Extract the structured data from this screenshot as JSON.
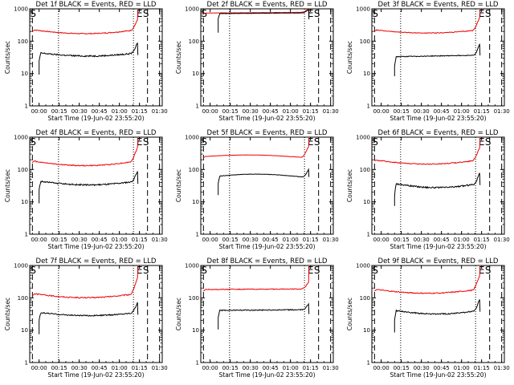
{
  "figure": {
    "axis_color": "#000000",
    "events_color": "#000000",
    "lld_color": "#ee0000"
  },
  "chart_data": [
    {
      "type": "line",
      "detector": "1f",
      "title": "Det 1f BLACK = Events, RED = LLD",
      "xlabel": "Start Time (19-Jun-02 23:55:20)",
      "ylabel": "Counts/sec",
      "yscale": "log",
      "ylim": [
        1,
        1000
      ],
      "xlim_min": [
        -2,
        97
      ],
      "xticks_min": [
        5,
        20,
        35,
        50,
        65,
        80,
        95
      ],
      "xtick_labels": [
        "00:00",
        "00:15",
        "00:30",
        "00:45",
        "01:00",
        "01:15",
        "01:30"
      ],
      "ytick_labels": [
        "1",
        "10",
        "100",
        "1000"
      ],
      "markers": {
        "S_min": 0,
        "E_min": 79.5,
        "dashed_min": [
          0,
          86,
          95
        ],
        "dotted_min": [
          19.5,
          75.5
        ]
      },
      "series": [
        {
          "name": "LLD",
          "color": "#ee0000",
          "start_min": 0,
          "end_min": 78.5,
          "profile": "u",
          "level": 185,
          "curvature": 0.15,
          "edge_drop": 0.1,
          "noise": 0.03,
          "end_rise": 2.0
        },
        {
          "name": "Events",
          "color": "#000000",
          "start_min": 5,
          "end_min": 78.5,
          "profile": "u",
          "level": 37,
          "curvature": 0.12,
          "edge_drop": 0.45,
          "noise": 0.05,
          "end_rise": 2.0
        }
      ]
    },
    {
      "type": "line",
      "detector": "2f",
      "title": "Det 2f BLACK = Events, RED = LLD",
      "xlabel": "Start Time (19-Jun-02 23:55:20)",
      "ylabel": "Counts/sec",
      "yscale": "log",
      "ylim": [
        1,
        1000
      ],
      "xlim_min": [
        -2,
        97
      ],
      "xticks_min": [
        5,
        20,
        35,
        50,
        65,
        80,
        95
      ],
      "xtick_labels": [
        "00:00",
        "00:15",
        "00:30",
        "00:45",
        "01:00",
        "01:15",
        "01:30"
      ],
      "ytick_labels": [
        "1",
        "10",
        "100",
        "1000"
      ],
      "markers": {
        "S_min": 0,
        "E_min": 79.5,
        "dashed_min": [
          0,
          86,
          95
        ],
        "dotted_min": [
          19.5,
          75.5
        ]
      },
      "series": [
        {
          "name": "LLD",
          "color": "#ee0000",
          "start_min": 0,
          "end_min": 78.5,
          "profile": "flat",
          "level": 760,
          "curvature": 0.05,
          "edge_drop": 0.05,
          "noise": 0.012,
          "end_rise": 1.3
        },
        {
          "name": "Events",
          "color": "#000000",
          "start_min": 11,
          "end_min": 78.5,
          "profile": "flat",
          "level": 730,
          "curvature": 0.05,
          "edge_drop": 0.3,
          "noise": 0.01,
          "end_rise": 1.3
        }
      ]
    },
    {
      "type": "line",
      "detector": "3f",
      "title": "Det 3f BLACK = Events, RED = LLD",
      "xlabel": "Start Time (19-Jun-02 23:55:20)",
      "ylabel": "Counts/sec",
      "yscale": "log",
      "ylim": [
        1,
        1000
      ],
      "xlim_min": [
        -2,
        97
      ],
      "xticks_min": [
        5,
        20,
        35,
        50,
        65,
        80,
        95
      ],
      "xtick_labels": [
        "00:00",
        "00:15",
        "00:30",
        "00:45",
        "01:00",
        "01:15",
        "01:30"
      ],
      "ytick_labels": [
        "1",
        "10",
        "100",
        "1000"
      ],
      "markers": {
        "S_min": 0,
        "E_min": 79.5,
        "dashed_min": [
          0,
          86,
          95
        ],
        "dotted_min": [
          19.5,
          75.5
        ]
      },
      "series": [
        {
          "name": "LLD",
          "color": "#ee0000",
          "start_min": 0,
          "end_min": 78.5,
          "profile": "u",
          "level": 190,
          "curvature": 0.12,
          "edge_drop": 0.1,
          "noise": 0.025,
          "end_rise": 2.4
        },
        {
          "name": "Events",
          "color": "#000000",
          "start_min": 15,
          "end_min": 78.5,
          "profile": "rise",
          "level": 33,
          "curvature": 0.08,
          "edge_drop": 0.5,
          "noise": 0.025,
          "end_rise": 2.2
        }
      ]
    },
    {
      "type": "line",
      "detector": "4f",
      "title": "Det 4f BLACK = Events, RED = LLD",
      "xlabel": "Start Time (19-Jun-02 23:55:20)",
      "ylabel": "Counts/sec",
      "yscale": "log",
      "ylim": [
        1,
        1000
      ],
      "xlim_min": [
        -2,
        97
      ],
      "xticks_min": [
        5,
        20,
        35,
        50,
        65,
        80,
        95
      ],
      "xtick_labels": [
        "00:00",
        "00:15",
        "00:30",
        "00:45",
        "01:00",
        "01:15",
        "01:30"
      ],
      "ytick_labels": [
        "1",
        "10",
        "100",
        "1000"
      ],
      "markers": {
        "S_min": 0,
        "E_min": 79.5,
        "dashed_min": [
          0,
          86,
          95
        ],
        "dotted_min": [
          19.5,
          75.5
        ]
      },
      "series": [
        {
          "name": "LLD",
          "color": "#ee0000",
          "start_min": 0,
          "end_min": 78.5,
          "profile": "u",
          "level": 145,
          "curvature": 0.18,
          "edge_drop": 0.1,
          "noise": 0.035,
          "end_rise": 2.6
        },
        {
          "name": "Events",
          "color": "#000000",
          "start_min": 5,
          "end_min": 78.5,
          "profile": "u",
          "level": 36,
          "curvature": 0.14,
          "edge_drop": 0.45,
          "noise": 0.05,
          "end_rise": 2.0
        }
      ]
    },
    {
      "type": "line",
      "detector": "5f",
      "title": "Det 5f BLACK = Events, RED = LLD",
      "xlabel": "Start Time (19-Jun-02 23:55:20)",
      "ylabel": "Counts/sec",
      "yscale": "log",
      "ylim": [
        1,
        1000
      ],
      "xlim_min": [
        -2,
        97
      ],
      "xticks_min": [
        5,
        20,
        35,
        50,
        65,
        80,
        95
      ],
      "xtick_labels": [
        "00:00",
        "00:15",
        "00:30",
        "00:45",
        "01:00",
        "01:15",
        "01:30"
      ],
      "ytick_labels": [
        "1",
        "10",
        "100",
        "1000"
      ],
      "markers": {
        "S_min": 0,
        "E_min": 79.5,
        "dashed_min": [
          0,
          86,
          95
        ],
        "dotted_min": [
          19.5,
          75.5
        ]
      },
      "series": [
        {
          "name": "LLD",
          "color": "#ee0000",
          "start_min": 0,
          "end_min": 78.5,
          "profile": "bump",
          "level": 260,
          "curvature": 0.12,
          "edge_drop": 0.08,
          "noise": 0.01,
          "end_rise": 2.2
        },
        {
          "name": "Events",
          "color": "#000000",
          "start_min": 11,
          "end_min": 78.5,
          "profile": "bump",
          "level": 65,
          "curvature": 0.15,
          "edge_drop": 0.4,
          "noise": 0.015,
          "end_rise": 1.8
        }
      ]
    },
    {
      "type": "line",
      "detector": "6f",
      "title": "Det 6f BLACK = Events, RED = LLD",
      "xlabel": "Start Time (19-Jun-02 23:55:20)",
      "ylabel": "Counts/sec",
      "yscale": "log",
      "ylim": [
        1,
        1000
      ],
      "xlim_min": [
        -2,
        97
      ],
      "xticks_min": [
        5,
        20,
        35,
        50,
        65,
        80,
        95
      ],
      "xtick_labels": [
        "00:00",
        "00:15",
        "00:30",
        "00:45",
        "01:00",
        "01:15",
        "01:30"
      ],
      "ytick_labels": [
        "1",
        "10",
        "100",
        "1000"
      ],
      "markers": {
        "S_min": 0,
        "E_min": 79.5,
        "dashed_min": [
          0,
          86,
          95
        ],
        "dotted_min": [
          19.5,
          75.5
        ]
      },
      "series": [
        {
          "name": "LLD",
          "color": "#ee0000",
          "start_min": 0,
          "end_min": 78.5,
          "profile": "u",
          "level": 160,
          "curvature": 0.16,
          "edge_drop": 0.1,
          "noise": 0.035,
          "end_rise": 2.4
        },
        {
          "name": "Events",
          "color": "#000000",
          "start_min": 15,
          "end_min": 78.5,
          "profile": "u",
          "level": 30,
          "curvature": 0.16,
          "edge_drop": 0.6,
          "noise": 0.05,
          "end_rise": 2.2
        }
      ]
    },
    {
      "type": "line",
      "detector": "7f",
      "title": "Det 7f BLACK = Events, RED = LLD",
      "xlabel": "Start Time (19-Jun-02 23:55:20)",
      "ylabel": "Counts/sec",
      "yscale": "log",
      "ylim": [
        1,
        1000
      ],
      "xlim_min": [
        -2,
        97
      ],
      "xticks_min": [
        5,
        20,
        35,
        50,
        65,
        80,
        95
      ],
      "xtick_labels": [
        "00:00",
        "00:15",
        "00:30",
        "00:45",
        "01:00",
        "01:15",
        "01:30"
      ],
      "ytick_labels": [
        "1",
        "10",
        "100",
        "1000"
      ],
      "markers": {
        "S_min": 0,
        "E_min": 79.5,
        "dashed_min": [
          0,
          86,
          95
        ],
        "dotted_min": [
          19.5,
          75.5
        ]
      },
      "series": [
        {
          "name": "LLD",
          "color": "#ee0000",
          "start_min": 0,
          "end_min": 78.5,
          "profile": "u",
          "level": 110,
          "curvature": 0.16,
          "edge_drop": 0.1,
          "noise": 0.04,
          "end_rise": 3.0
        },
        {
          "name": "Events",
          "color": "#000000",
          "start_min": 5,
          "end_min": 78.5,
          "profile": "u",
          "level": 30,
          "curvature": 0.12,
          "edge_drop": 0.45,
          "noise": 0.04,
          "end_rise": 2.0
        }
      ]
    },
    {
      "type": "line",
      "detector": "8f",
      "title": "Det 8f BLACK = Events, RED = LLD",
      "xlabel": "Start Time (19-Jun-02 23:55:20)",
      "ylabel": "Counts/sec",
      "yscale": "log",
      "ylim": [
        1,
        1000
      ],
      "xlim_min": [
        -2,
        97
      ],
      "xticks_min": [
        5,
        20,
        35,
        50,
        65,
        80,
        95
      ],
      "xtick_labels": [
        "00:00",
        "00:15",
        "00:30",
        "00:45",
        "01:00",
        "01:15",
        "01:30"
      ],
      "ytick_labels": [
        "1",
        "10",
        "100",
        "1000"
      ],
      "markers": {
        "S_min": 0,
        "E_min": 79.5,
        "dashed_min": [
          0,
          86,
          95
        ],
        "dotted_min": [
          19.5,
          75.5
        ]
      },
      "series": [
        {
          "name": "LLD",
          "color": "#ee0000",
          "start_min": 0,
          "end_min": 78.5,
          "profile": "flat",
          "level": 185,
          "curvature": 0.04,
          "edge_drop": 0.1,
          "noise": 0.025,
          "end_rise": 1.6
        },
        {
          "name": "Events",
          "color": "#000000",
          "start_min": 11,
          "end_min": 78.5,
          "profile": "flat",
          "level": 42,
          "curvature": 0.04,
          "edge_drop": 0.4,
          "noise": 0.035,
          "end_rise": 1.5
        }
      ]
    },
    {
      "type": "line",
      "detector": "9f",
      "title": "Det 9f BLACK = Events, RED = LLD",
      "xlabel": "Start Time (19-Jun-02 23:55:20)",
      "ylabel": "Counts/sec",
      "yscale": "log",
      "ylim": [
        1,
        1000
      ],
      "xlim_min": [
        -2,
        97
      ],
      "xticks_min": [
        5,
        20,
        35,
        50,
        65,
        80,
        95
      ],
      "xtick_labels": [
        "00:00",
        "00:15",
        "00:30",
        "00:45",
        "01:00",
        "01:15",
        "01:30"
      ],
      "ytick_labels": [
        "1",
        "10",
        "100",
        "1000"
      ],
      "markers": {
        "S_min": 0,
        "E_min": 79.5,
        "dashed_min": [
          0,
          86,
          95
        ],
        "dotted_min": [
          19.5,
          75.5
        ]
      },
      "series": [
        {
          "name": "LLD",
          "color": "#ee0000",
          "start_min": 0,
          "end_min": 78.5,
          "profile": "u",
          "level": 150,
          "curvature": 0.15,
          "edge_drop": 0.1,
          "noise": 0.035,
          "end_rise": 2.6
        },
        {
          "name": "Events",
          "color": "#000000",
          "start_min": 15,
          "end_min": 78.5,
          "profile": "u",
          "level": 34,
          "curvature": 0.14,
          "edge_drop": 0.5,
          "noise": 0.04,
          "end_rise": 2.2
        }
      ]
    }
  ]
}
